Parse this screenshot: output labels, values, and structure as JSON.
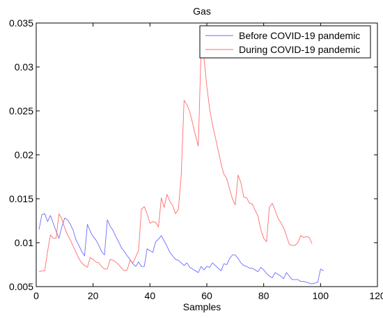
{
  "chart_data": {
    "type": "line",
    "title": "Gas",
    "xlabel": "Samples",
    "ylabel": "",
    "xlim": [
      0,
      120
    ],
    "ylim": [
      0.005,
      0.035
    ],
    "xticks": [
      0,
      20,
      40,
      60,
      80,
      100,
      120
    ],
    "xtick_labels": [
      "0",
      "20",
      "40",
      "60",
      "80",
      "100",
      "120"
    ],
    "yticks": [
      0.005,
      0.01,
      0.015,
      0.02,
      0.025,
      0.03,
      0.035
    ],
    "ytick_labels": [
      "0.005",
      "0.01",
      "0.015",
      "0.02",
      "0.025",
      "0.03",
      "0.035"
    ],
    "grid": false,
    "legend_position": "top-right",
    "series": [
      {
        "name": "Before COVID-19 pandemic",
        "color": "#6b6bff",
        "x": [
          1,
          2,
          3,
          4,
          5,
          6,
          7,
          8,
          9,
          10,
          11,
          12,
          13,
          14,
          15,
          16,
          17,
          18,
          19,
          20,
          21,
          22,
          23,
          24,
          25,
          26,
          27,
          28,
          29,
          30,
          31,
          32,
          33,
          34,
          35,
          36,
          37,
          38,
          39,
          40,
          41,
          42,
          43,
          44,
          45,
          46,
          47,
          48,
          49,
          50,
          51,
          52,
          53,
          54,
          55,
          56,
          57,
          58,
          59,
          60,
          61,
          62,
          63,
          64,
          65,
          66,
          67,
          68,
          69,
          70,
          71,
          72,
          73,
          74,
          75,
          76,
          77,
          78,
          79,
          80,
          81,
          82,
          83,
          84,
          85,
          86,
          87,
          88,
          89,
          90,
          91,
          92,
          93,
          94,
          95,
          96,
          97,
          98,
          99,
          100,
          101
        ],
        "y": [
          0.0115,
          0.0132,
          0.0133,
          0.0124,
          0.0131,
          0.0122,
          0.0113,
          0.0105,
          0.0118,
          0.0128,
          0.0126,
          0.0121,
          0.0114,
          0.0103,
          0.0097,
          0.009,
          0.0085,
          0.0121,
          0.0113,
          0.0107,
          0.0103,
          0.0097,
          0.009,
          0.0086,
          0.0126,
          0.0119,
          0.0114,
          0.0107,
          0.0101,
          0.0094,
          0.009,
          0.0085,
          0.0081,
          0.0076,
          0.0073,
          0.0078,
          0.0073,
          0.0073,
          0.0093,
          0.0091,
          0.0089,
          0.0101,
          0.0104,
          0.0108,
          0.0102,
          0.0096,
          0.0089,
          0.0085,
          0.0081,
          0.008,
          0.0077,
          0.0074,
          0.0077,
          0.0072,
          0.007,
          0.0068,
          0.0066,
          0.0073,
          0.0069,
          0.0073,
          0.0072,
          0.0077,
          0.0074,
          0.0071,
          0.0068,
          0.0076,
          0.0075,
          0.0082,
          0.0086,
          0.0086,
          0.0082,
          0.0077,
          0.0074,
          0.0073,
          0.0071,
          0.0071,
          0.0069,
          0.0067,
          0.0072,
          0.0069,
          0.0065,
          0.0062,
          0.006,
          0.0066,
          0.0064,
          0.0062,
          0.0059,
          0.0066,
          0.0062,
          0.0058,
          0.0058,
          0.0058,
          0.0056,
          0.0056,
          0.0055,
          0.0054,
          0.0053,
          0.0054,
          0.0055,
          0.007,
          0.0068
        ]
      },
      {
        "name": "During COVID-19 pandemic",
        "color": "#ff6b6b",
        "x": [
          1,
          2,
          3,
          4,
          5,
          6,
          7,
          8,
          9,
          10,
          11,
          12,
          13,
          14,
          15,
          16,
          17,
          18,
          19,
          20,
          21,
          22,
          23,
          24,
          25,
          26,
          27,
          28,
          29,
          30,
          31,
          32,
          33,
          34,
          35,
          36,
          37,
          38,
          39,
          40,
          41,
          42,
          43,
          44,
          45,
          46,
          47,
          48,
          49,
          50,
          51,
          52,
          53,
          54,
          55,
          56,
          57,
          58,
          59,
          60,
          61,
          62,
          63,
          64,
          65,
          66,
          67,
          68,
          69,
          70,
          71,
          72,
          73,
          74,
          75,
          76,
          77,
          78,
          79,
          80,
          81,
          82,
          83,
          84,
          85,
          86,
          87,
          88,
          89,
          90,
          91,
          92,
          93,
          94,
          95,
          96,
          97
        ],
        "y": [
          0.0067,
          0.0068,
          0.0068,
          0.009,
          0.0109,
          0.0105,
          0.0105,
          0.0133,
          0.0127,
          0.0117,
          0.0109,
          0.0103,
          0.0096,
          0.0089,
          0.0082,
          0.0077,
          0.0074,
          0.0072,
          0.0083,
          0.0081,
          0.0078,
          0.0077,
          0.0073,
          0.007,
          0.007,
          0.0081,
          0.008,
          0.0078,
          0.0075,
          0.0071,
          0.0068,
          0.0069,
          0.008,
          0.0077,
          0.0084,
          0.0091,
          0.0138,
          0.0141,
          0.0133,
          0.0122,
          0.0124,
          0.0123,
          0.0118,
          0.0151,
          0.014,
          0.0155,
          0.0147,
          0.0142,
          0.0133,
          0.0138,
          0.0177,
          0.0262,
          0.0257,
          0.0249,
          0.0236,
          0.0222,
          0.021,
          0.0321,
          0.031,
          0.0278,
          0.0252,
          0.0234,
          0.022,
          0.0205,
          0.019,
          0.0178,
          0.0173,
          0.0161,
          0.015,
          0.0143,
          0.0177,
          0.0168,
          0.0152,
          0.0151,
          0.0145,
          0.0144,
          0.0137,
          0.013,
          0.0115,
          0.0105,
          0.0101,
          0.014,
          0.0145,
          0.0137,
          0.0128,
          0.0123,
          0.0117,
          0.0108,
          0.0098,
          0.0097,
          0.0097,
          0.01,
          0.0108,
          0.0106,
          0.0107,
          0.0106,
          0.0099
        ]
      }
    ]
  }
}
